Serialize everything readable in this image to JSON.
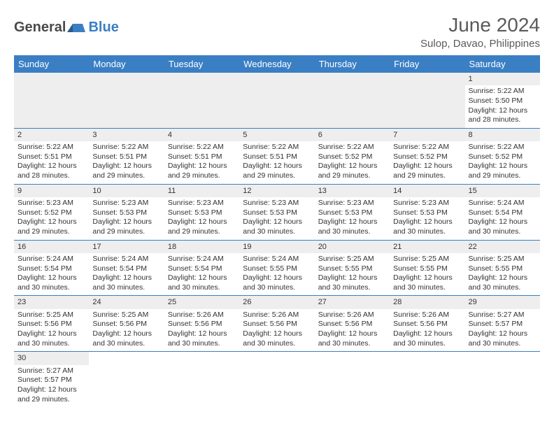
{
  "brand": {
    "general": "General",
    "blue": "Blue"
  },
  "header": {
    "month_title": "June 2024",
    "location": "Sulop, Davao, Philippines"
  },
  "calendar": {
    "type": "table",
    "columns": [
      "Sunday",
      "Monday",
      "Tuesday",
      "Wednesday",
      "Thursday",
      "Friday",
      "Saturday"
    ],
    "header_bg": "#3a7fc4",
    "header_text_color": "#ffffff",
    "border_color": "#3a7fc4",
    "daynum_bg": "#eeeeee",
    "text_color": "#333333",
    "font_size_cell": 10.5,
    "weeks": [
      [
        null,
        null,
        null,
        null,
        null,
        null,
        {
          "day": "1",
          "sunrise": "Sunrise: 5:22 AM",
          "sunset": "Sunset: 5:50 PM",
          "daylight1": "Daylight: 12 hours",
          "daylight2": "and 28 minutes."
        }
      ],
      [
        {
          "day": "2",
          "sunrise": "Sunrise: 5:22 AM",
          "sunset": "Sunset: 5:51 PM",
          "daylight1": "Daylight: 12 hours",
          "daylight2": "and 28 minutes."
        },
        {
          "day": "3",
          "sunrise": "Sunrise: 5:22 AM",
          "sunset": "Sunset: 5:51 PM",
          "daylight1": "Daylight: 12 hours",
          "daylight2": "and 29 minutes."
        },
        {
          "day": "4",
          "sunrise": "Sunrise: 5:22 AM",
          "sunset": "Sunset: 5:51 PM",
          "daylight1": "Daylight: 12 hours",
          "daylight2": "and 29 minutes."
        },
        {
          "day": "5",
          "sunrise": "Sunrise: 5:22 AM",
          "sunset": "Sunset: 5:51 PM",
          "daylight1": "Daylight: 12 hours",
          "daylight2": "and 29 minutes."
        },
        {
          "day": "6",
          "sunrise": "Sunrise: 5:22 AM",
          "sunset": "Sunset: 5:52 PM",
          "daylight1": "Daylight: 12 hours",
          "daylight2": "and 29 minutes."
        },
        {
          "day": "7",
          "sunrise": "Sunrise: 5:22 AM",
          "sunset": "Sunset: 5:52 PM",
          "daylight1": "Daylight: 12 hours",
          "daylight2": "and 29 minutes."
        },
        {
          "day": "8",
          "sunrise": "Sunrise: 5:22 AM",
          "sunset": "Sunset: 5:52 PM",
          "daylight1": "Daylight: 12 hours",
          "daylight2": "and 29 minutes."
        }
      ],
      [
        {
          "day": "9",
          "sunrise": "Sunrise: 5:23 AM",
          "sunset": "Sunset: 5:52 PM",
          "daylight1": "Daylight: 12 hours",
          "daylight2": "and 29 minutes."
        },
        {
          "day": "10",
          "sunrise": "Sunrise: 5:23 AM",
          "sunset": "Sunset: 5:53 PM",
          "daylight1": "Daylight: 12 hours",
          "daylight2": "and 29 minutes."
        },
        {
          "day": "11",
          "sunrise": "Sunrise: 5:23 AM",
          "sunset": "Sunset: 5:53 PM",
          "daylight1": "Daylight: 12 hours",
          "daylight2": "and 29 minutes."
        },
        {
          "day": "12",
          "sunrise": "Sunrise: 5:23 AM",
          "sunset": "Sunset: 5:53 PM",
          "daylight1": "Daylight: 12 hours",
          "daylight2": "and 30 minutes."
        },
        {
          "day": "13",
          "sunrise": "Sunrise: 5:23 AM",
          "sunset": "Sunset: 5:53 PM",
          "daylight1": "Daylight: 12 hours",
          "daylight2": "and 30 minutes."
        },
        {
          "day": "14",
          "sunrise": "Sunrise: 5:23 AM",
          "sunset": "Sunset: 5:53 PM",
          "daylight1": "Daylight: 12 hours",
          "daylight2": "and 30 minutes."
        },
        {
          "day": "15",
          "sunrise": "Sunrise: 5:24 AM",
          "sunset": "Sunset: 5:54 PM",
          "daylight1": "Daylight: 12 hours",
          "daylight2": "and 30 minutes."
        }
      ],
      [
        {
          "day": "16",
          "sunrise": "Sunrise: 5:24 AM",
          "sunset": "Sunset: 5:54 PM",
          "daylight1": "Daylight: 12 hours",
          "daylight2": "and 30 minutes."
        },
        {
          "day": "17",
          "sunrise": "Sunrise: 5:24 AM",
          "sunset": "Sunset: 5:54 PM",
          "daylight1": "Daylight: 12 hours",
          "daylight2": "and 30 minutes."
        },
        {
          "day": "18",
          "sunrise": "Sunrise: 5:24 AM",
          "sunset": "Sunset: 5:54 PM",
          "daylight1": "Daylight: 12 hours",
          "daylight2": "and 30 minutes."
        },
        {
          "day": "19",
          "sunrise": "Sunrise: 5:24 AM",
          "sunset": "Sunset: 5:55 PM",
          "daylight1": "Daylight: 12 hours",
          "daylight2": "and 30 minutes."
        },
        {
          "day": "20",
          "sunrise": "Sunrise: 5:25 AM",
          "sunset": "Sunset: 5:55 PM",
          "daylight1": "Daylight: 12 hours",
          "daylight2": "and 30 minutes."
        },
        {
          "day": "21",
          "sunrise": "Sunrise: 5:25 AM",
          "sunset": "Sunset: 5:55 PM",
          "daylight1": "Daylight: 12 hours",
          "daylight2": "and 30 minutes."
        },
        {
          "day": "22",
          "sunrise": "Sunrise: 5:25 AM",
          "sunset": "Sunset: 5:55 PM",
          "daylight1": "Daylight: 12 hours",
          "daylight2": "and 30 minutes."
        }
      ],
      [
        {
          "day": "23",
          "sunrise": "Sunrise: 5:25 AM",
          "sunset": "Sunset: 5:56 PM",
          "daylight1": "Daylight: 12 hours",
          "daylight2": "and 30 minutes."
        },
        {
          "day": "24",
          "sunrise": "Sunrise: 5:25 AM",
          "sunset": "Sunset: 5:56 PM",
          "daylight1": "Daylight: 12 hours",
          "daylight2": "and 30 minutes."
        },
        {
          "day": "25",
          "sunrise": "Sunrise: 5:26 AM",
          "sunset": "Sunset: 5:56 PM",
          "daylight1": "Daylight: 12 hours",
          "daylight2": "and 30 minutes."
        },
        {
          "day": "26",
          "sunrise": "Sunrise: 5:26 AM",
          "sunset": "Sunset: 5:56 PM",
          "daylight1": "Daylight: 12 hours",
          "daylight2": "and 30 minutes."
        },
        {
          "day": "27",
          "sunrise": "Sunrise: 5:26 AM",
          "sunset": "Sunset: 5:56 PM",
          "daylight1": "Daylight: 12 hours",
          "daylight2": "and 30 minutes."
        },
        {
          "day": "28",
          "sunrise": "Sunrise: 5:26 AM",
          "sunset": "Sunset: 5:56 PM",
          "daylight1": "Daylight: 12 hours",
          "daylight2": "and 30 minutes."
        },
        {
          "day": "29",
          "sunrise": "Sunrise: 5:27 AM",
          "sunset": "Sunset: 5:57 PM",
          "daylight1": "Daylight: 12 hours",
          "daylight2": "and 30 minutes."
        }
      ],
      [
        {
          "day": "30",
          "sunrise": "Sunrise: 5:27 AM",
          "sunset": "Sunset: 5:57 PM",
          "daylight1": "Daylight: 12 hours",
          "daylight2": "and 29 minutes."
        },
        null,
        null,
        null,
        null,
        null,
        null
      ]
    ]
  }
}
